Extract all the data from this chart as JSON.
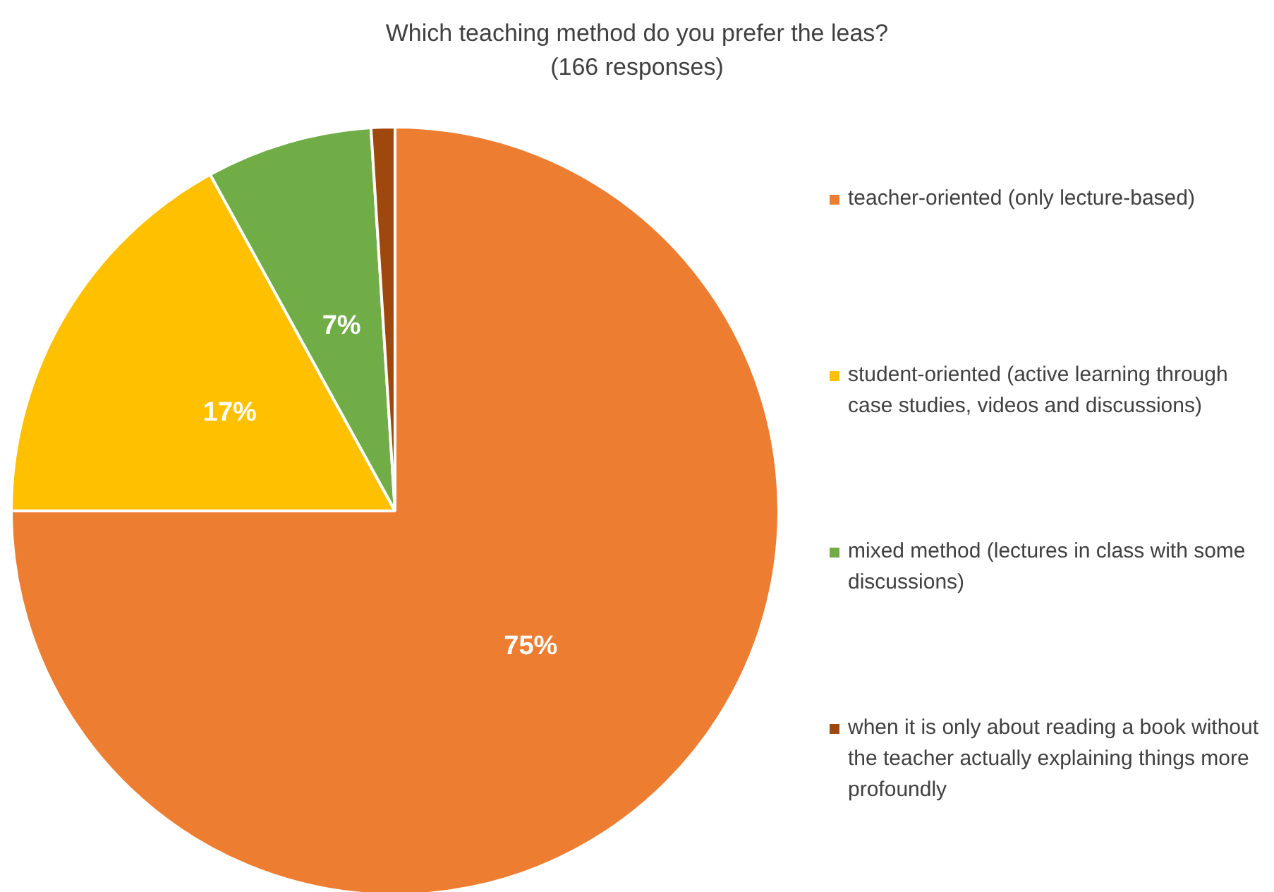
{
  "chart_data": {
    "type": "pie",
    "title": "Which teaching method do you prefer the leas?",
    "subtitle": "(166 responses)",
    "categories": [
      "teacher-oriented (only lecture-based)",
      "student-oriented (active learning through case studies, videos and discussions)",
      "mixed method (lectures in class with some discussions)",
      "when it is only about reading a book without the teacher actually explaining things more profoundly"
    ],
    "values": [
      75,
      17,
      7,
      1
    ],
    "colors": [
      "#ed7d31",
      "#ffc000",
      "#70ad47",
      "#9e480e"
    ],
    "value_labels": [
      "75%",
      "17%",
      "7%",
      null
    ],
    "legend": "right"
  }
}
